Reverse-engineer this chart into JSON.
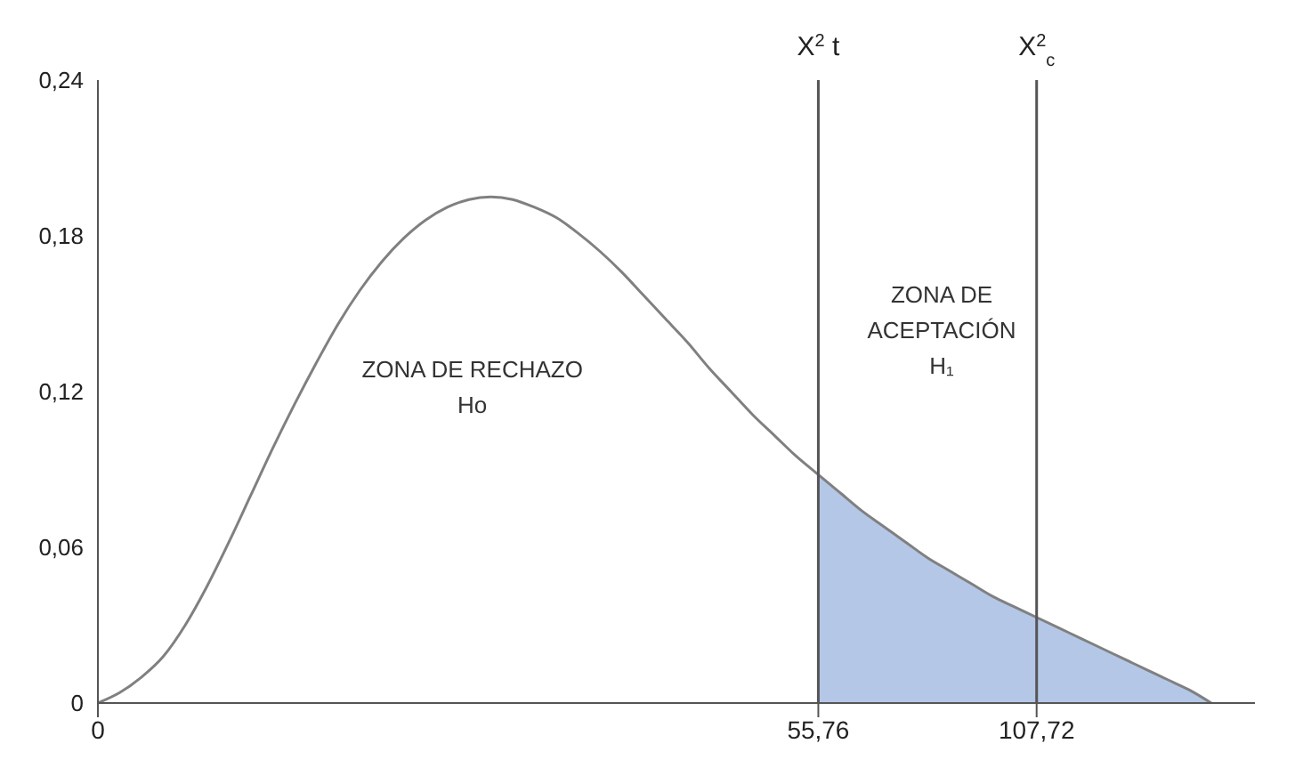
{
  "chart_data": {
    "type": "line",
    "categories": [
      "0",
      null,
      null,
      null,
      null,
      null,
      null,
      null,
      null,
      null,
      null,
      null,
      null,
      null,
      null,
      null,
      null,
      null,
      null,
      null,
      null,
      null,
      null,
      null,
      null,
      null,
      null,
      null,
      null,
      null,
      null,
      null,
      null,
      "55,76",
      null,
      null,
      null,
      null,
      null,
      null,
      null,
      null,
      null,
      "107,72",
      null,
      null,
      null,
      null,
      null,
      null,
      null,
      null,
      null,
      null
    ],
    "series": [
      {
        "color": "#808080",
        "values": [
          0,
          0.004,
          0.01,
          0.018,
          0.03,
          0.045,
          0.062,
          0.08,
          0.098,
          0.115,
          0.131,
          0.146,
          0.159,
          0.17,
          0.179,
          0.186,
          0.191,
          0.194,
          0.195,
          0.194,
          0.191,
          0.187,
          0.181,
          0.174,
          0.166,
          0.157,
          0.148,
          0.139,
          0.129,
          0.12,
          0.111,
          0.103,
          0.095,
          0.088,
          0.081,
          0.074,
          0.068,
          0.062,
          0.056,
          0.051,
          0.046,
          0.041,
          0.037,
          0.033,
          0.029,
          0.025,
          0.021,
          0.017,
          0.013,
          0.009,
          0.005,
          0,
          null,
          null
        ]
      },
      {
        "type": "area",
        "color": "#b4c7e7",
        "values": [
          null,
          null,
          null,
          null,
          null,
          null,
          null,
          null,
          null,
          null,
          null,
          null,
          null,
          null,
          null,
          null,
          null,
          null,
          null,
          null,
          null,
          null,
          null,
          null,
          null,
          null,
          null,
          null,
          null,
          null,
          null,
          null,
          null,
          0.088,
          0.081,
          0.074,
          0.068,
          0.062,
          0.056,
          0.051,
          0.046,
          0.041,
          0.037,
          0.033,
          0.029,
          0.025,
          0.021,
          0.017,
          0.013,
          0.009,
          0.005,
          0,
          null,
          null
        ]
      }
    ],
    "ylim": [
      0,
      0.24
    ],
    "yticks": [
      0,
      {
        "value": 0.06,
        "label": "0,06"
      },
      {
        "value": 0.12,
        "label": "0,12"
      },
      {
        "value": 0.18,
        "label": "0,18"
      },
      {
        "value": 0.24,
        "label": "0,24"
      }
    ],
    "ref_lines": [
      {
        "axis": "x",
        "value": "55,76",
        "label": "X$^{2}$ t",
        "color": "#555555"
      },
      {
        "axis": "x",
        "value": "107,72",
        "label": "X$^{2}$$_{c}$",
        "color": "#555555"
      }
    ],
    "annotations": [
      "ZONA DE RECHAZO\nHo",
      "ZONA DE\nACEPTACIÓN\nH₁"
    ],
    "grid": false,
    "legend": false
  }
}
